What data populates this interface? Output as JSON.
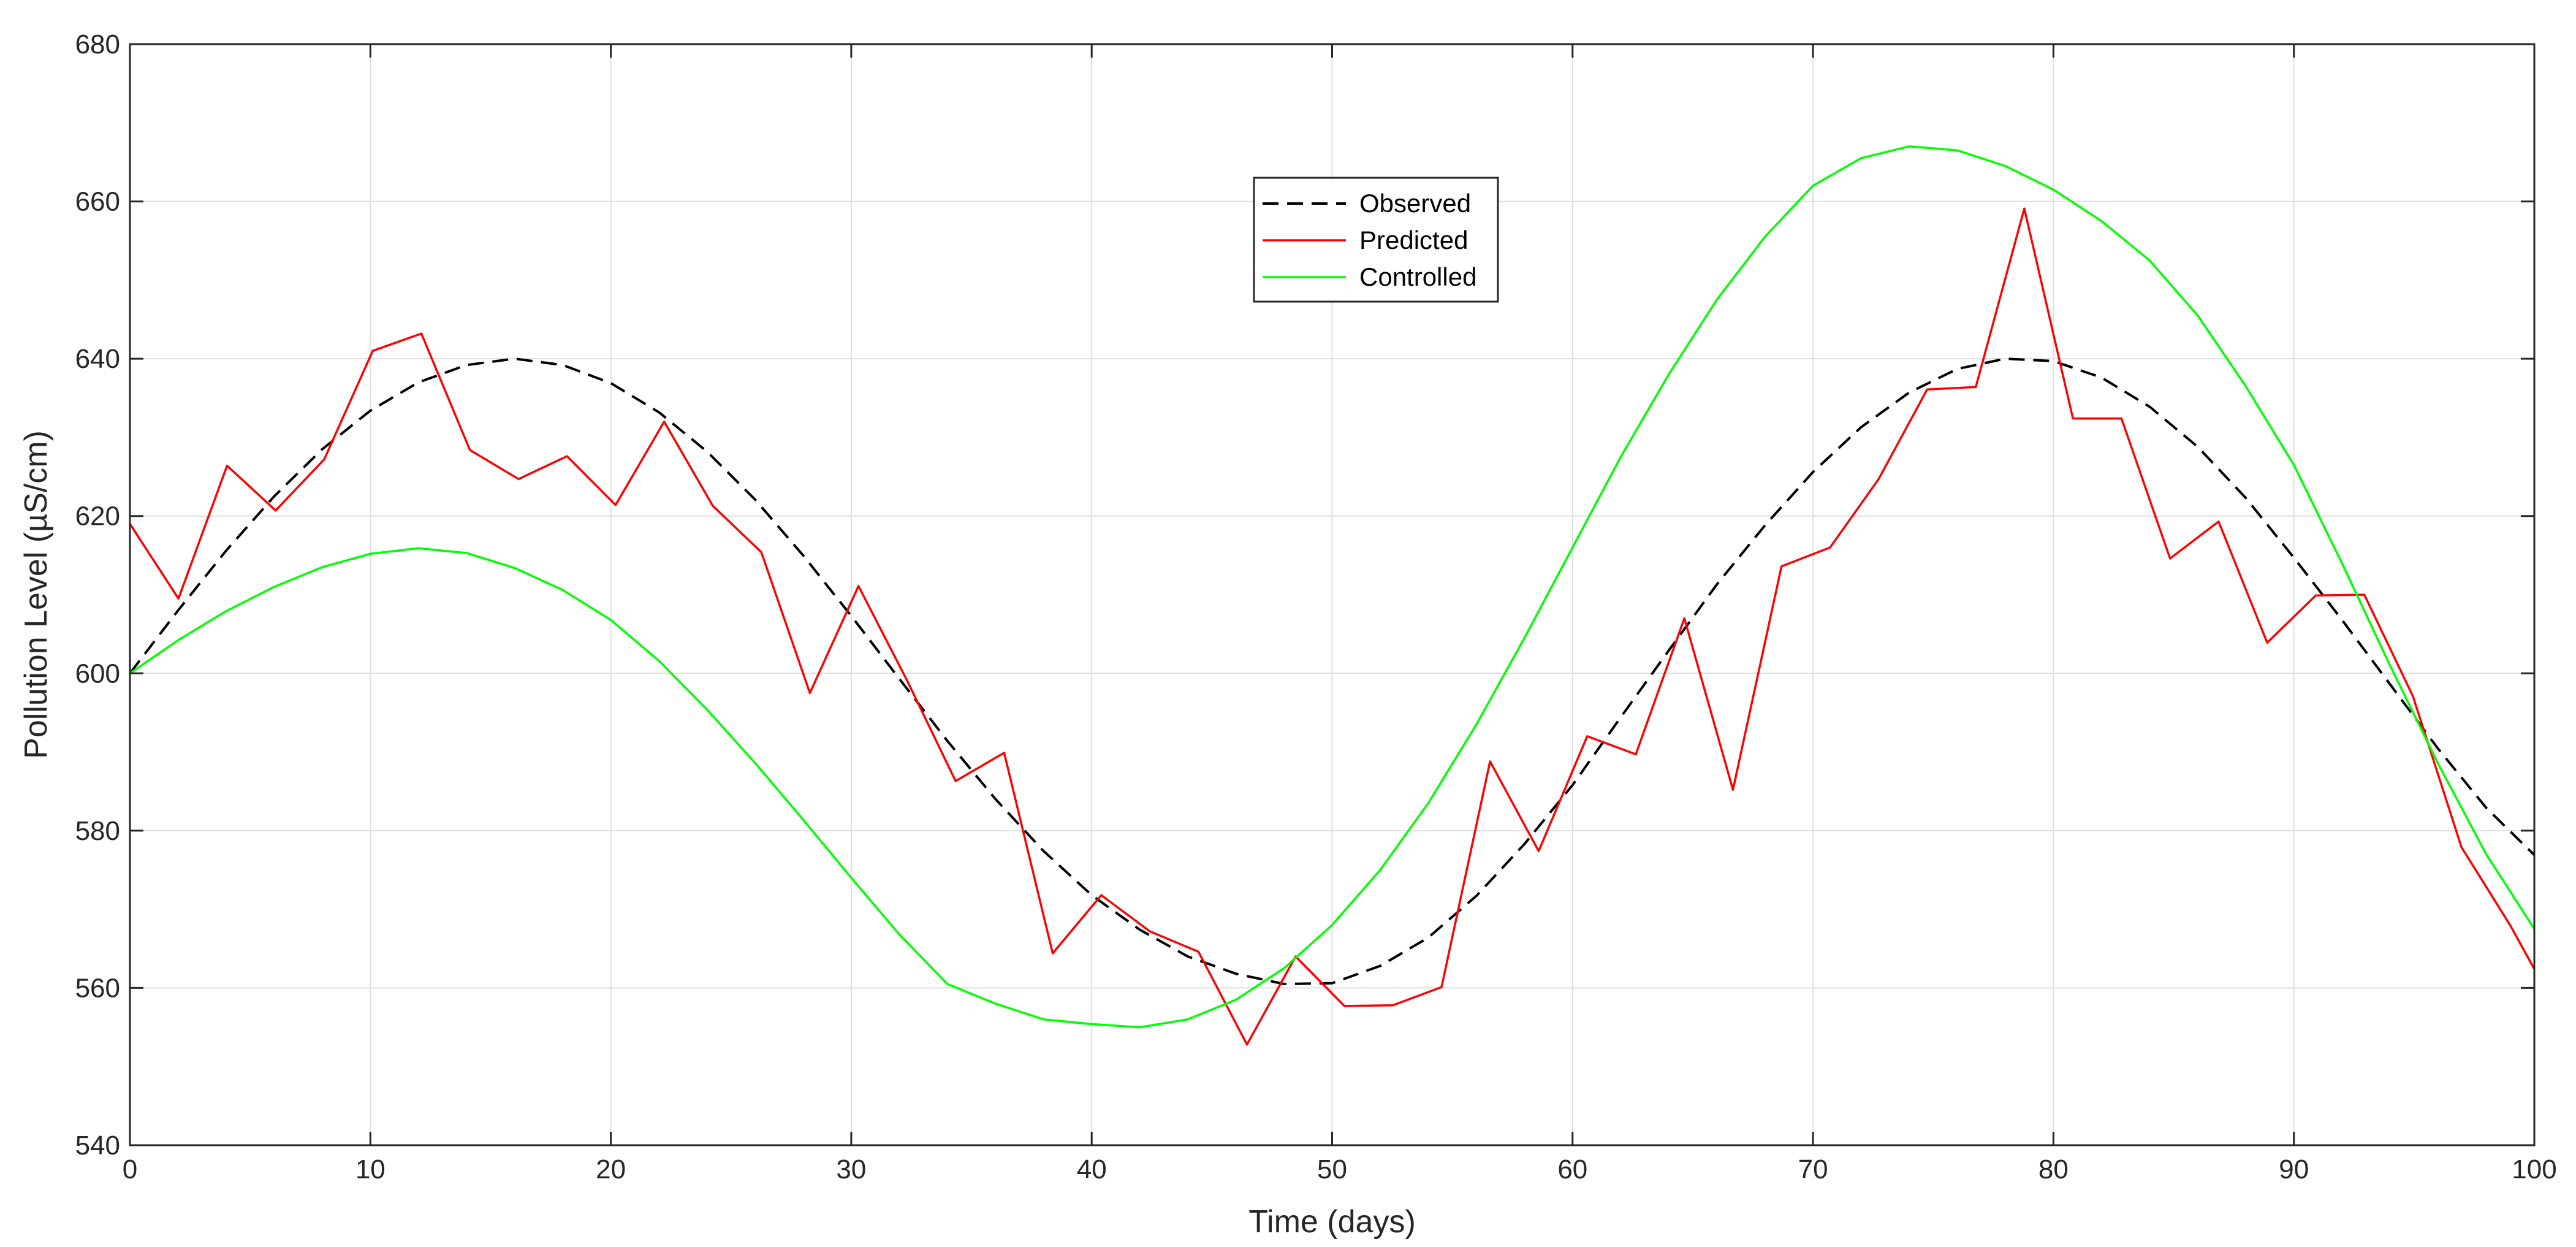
{
  "chart_data": {
    "type": "line",
    "xlabel": "Time (days)",
    "ylabel": "Pollution Level (µS/cm)",
    "xlim": [
      0,
      100
    ],
    "ylim": [
      540,
      680
    ],
    "xticks": [
      0,
      10,
      20,
      30,
      40,
      50,
      60,
      70,
      80,
      90,
      100
    ],
    "yticks": [
      540,
      560,
      580,
      600,
      620,
      640,
      660,
      680
    ],
    "grid": true,
    "legend_position": "top-center",
    "series": [
      {
        "name": "Observed",
        "color": "#000000",
        "style": "dashed",
        "x": [
          0,
          2,
          4,
          6,
          8,
          10,
          12,
          14,
          16,
          18,
          20,
          22,
          24,
          26,
          28,
          30,
          32,
          34,
          36,
          38,
          40,
          42,
          44,
          46,
          48,
          50,
          52,
          54,
          56,
          58,
          60,
          62,
          64,
          66,
          68,
          70,
          72,
          74,
          76,
          78,
          80,
          82,
          84,
          86,
          88,
          90,
          92,
          94,
          96,
          98,
          100
        ],
        "y": [
          600,
          608.0,
          615.6,
          622.5,
          628.5,
          633.4,
          637.0,
          639.2,
          640.0,
          639.2,
          636.9,
          633.2,
          628.2,
          622.1,
          615.0,
          607.3,
          599.3,
          591.4,
          584.0,
          577.4,
          571.8,
          567.4,
          564.0,
          561.8,
          560.5,
          560.6,
          562.8,
          566.4,
          571.7,
          578.3,
          585.8,
          594.4,
          602.9,
          611.3,
          618.8,
          625.6,
          631.3,
          635.7,
          638.7,
          640.0,
          639.7,
          637.6,
          633.9,
          628.8,
          622.3,
          614.7,
          606.8,
          598.6,
          590.4,
          582.9,
          576.9
        ]
      },
      {
        "name": "Predicted",
        "color": "#ff0000",
        "style": "solid",
        "x": [
          0,
          2.02,
          4.04,
          6.06,
          8.08,
          10.1,
          12.12,
          14.14,
          16.16,
          18.18,
          20.2,
          22.22,
          24.24,
          26.26,
          28.28,
          30.3,
          32.32,
          34.34,
          36.36,
          38.38,
          40.4,
          42.42,
          44.44,
          46.46,
          48.48,
          50.51,
          52.53,
          54.55,
          56.57,
          58.59,
          60.61,
          62.63,
          64.65,
          66.67,
          68.69,
          70.71,
          72.73,
          74.75,
          76.77,
          78.79,
          80.81,
          82.83,
          84.85,
          86.87,
          88.89,
          90.91,
          92.93,
          94.95,
          96.97,
          98.99,
          100
        ],
        "y": [
          619.0,
          609.5,
          626.4,
          620.7,
          627.2,
          641.0,
          643.2,
          628.4,
          624.7,
          627.6,
          621.4,
          632.0,
          621.3,
          615.4,
          597.5,
          611.1,
          599.1,
          586.3,
          589.9,
          564.4,
          571.8,
          567.2,
          564.6,
          552.8,
          564.0,
          557.7,
          557.8,
          560.1,
          588.8,
          577.4,
          592.0,
          589.7,
          607.0,
          585.2,
          613.6,
          616.0,
          624.7,
          636.1,
          636.4,
          659.1,
          632.4,
          632.4,
          614.6,
          619.3,
          603.9,
          609.9,
          610.0,
          597.1,
          577.9,
          568.0,
          562.4
        ]
      },
      {
        "name": "Controlled",
        "color": "#00ff00",
        "style": "solid",
        "x": [
          0,
          2,
          4,
          6,
          8,
          10,
          12,
          14,
          16,
          18,
          20,
          22,
          24,
          26,
          28,
          30,
          32,
          34,
          36,
          38,
          40,
          42,
          44,
          46,
          48,
          50,
          52,
          54,
          56,
          58,
          60,
          62,
          64,
          66,
          68,
          70,
          72,
          74,
          76,
          78,
          80,
          82,
          84,
          86,
          88,
          90,
          92,
          94,
          96,
          98,
          100
        ],
        "y": [
          600,
          604.2,
          607.9,
          611.0,
          613.5,
          615.2,
          615.9,
          615.3,
          613.4,
          610.6,
          606.8,
          601.6,
          595.4,
          588.6,
          581.4,
          574.0,
          566.8,
          560.5,
          558.0,
          556.0,
          555.4,
          555.0,
          556.0,
          558.5,
          562.5,
          568.0,
          575.0,
          583.5,
          593.5,
          604.5,
          616.0,
          627.5,
          638.0,
          647.5,
          655.5,
          662.0,
          665.5,
          667.0,
          666.5,
          664.5,
          661.5,
          657.5,
          652.5,
          645.5,
          636.5,
          626.5,
          614.0,
          601.0,
          588.5,
          577.0,
          567.5
        ]
      }
    ]
  }
}
